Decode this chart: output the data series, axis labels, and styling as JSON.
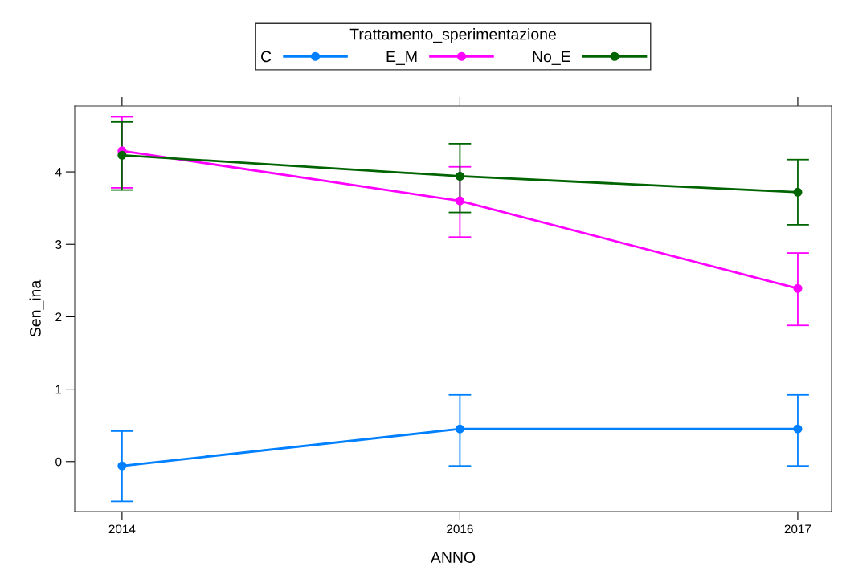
{
  "chart_data": {
    "type": "line",
    "xlabel": "ANNO",
    "ylabel": "Sen_ina",
    "legend_title": "Trattamento_sperimentazione",
    "legend": "top",
    "marker": "circle",
    "line_style": "solid",
    "grid": false,
    "categories": [
      "2014",
      "2016",
      "2017"
    ],
    "ylim": [
      -0.69,
      4.91
    ],
    "yticks": [
      0,
      1,
      2,
      3,
      4
    ],
    "series": [
      {
        "name": "C",
        "color": "#0080ff",
        "values": [
          -0.06,
          0.45,
          0.45
        ],
        "errors": [
          [
            -0.55,
            0.42
          ],
          [
            -0.06,
            0.92
          ],
          [
            -0.06,
            0.92
          ]
        ]
      },
      {
        "name": "E_M",
        "color": "#ff00ff",
        "values": [
          4.29,
          3.6,
          2.39
        ],
        "errors": [
          [
            3.78,
            4.76
          ],
          [
            3.1,
            4.07
          ],
          [
            1.88,
            2.88
          ]
        ]
      },
      {
        "name": "No_E",
        "color": "#006400",
        "values": [
          4.23,
          3.94,
          3.72
        ],
        "errors": [
          [
            3.75,
            4.69
          ],
          [
            3.44,
            4.39
          ],
          [
            3.27,
            4.17
          ]
        ]
      }
    ]
  }
}
